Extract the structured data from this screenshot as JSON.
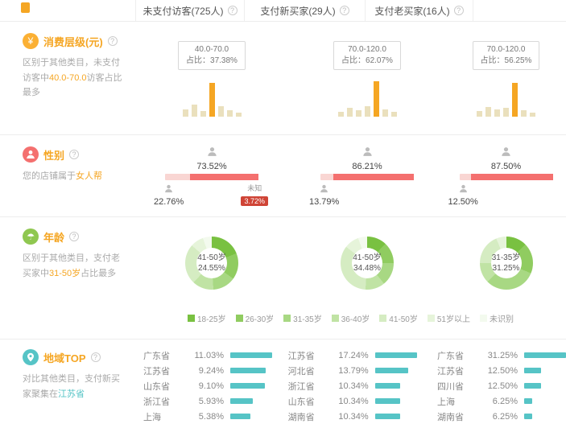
{
  "ui": {
    "help": "?"
  },
  "colors": {
    "orange": "#f5a623",
    "yellowIcon": "#fbb034",
    "tan": "#eae0bd",
    "pink": "#f4706f",
    "pinkLight": "#f9d6d3",
    "redBadge": "#cf4436",
    "teal": "#56c4c6",
    "greenIcon": "#8fc750"
  },
  "header": {
    "columns": [
      "未支付访客(725人)",
      "支付新买家(29人)",
      "支付老买家(16人)"
    ]
  },
  "consume": {
    "icon_glyph": "¥",
    "title": "消费层级(元)",
    "desc": {
      "pre": "区别于其他类目，未支付访客中",
      "highlight": "40.0-70.0",
      "post": "访客占比最多"
    },
    "columns": [
      {
        "range": "40.0-70.0",
        "ratio": "占比：37.38%",
        "bars": [
          9,
          15,
          7,
          42,
          13,
          8,
          5
        ],
        "highlight": 3
      },
      {
        "range": "70.0-120.0",
        "ratio": "占比：62.07%",
        "bars": [
          6,
          11,
          8,
          13,
          44,
          9,
          6
        ],
        "highlight": 4
      },
      {
        "range": "70.0-120.0",
        "ratio": "占比：56.25%",
        "bars": [
          7,
          12,
          9,
          11,
          42,
          8,
          5
        ],
        "highlight": 4
      }
    ]
  },
  "gender": {
    "title": "性别",
    "desc": {
      "pre": "您的店铺属于",
      "highlight": "女人帮",
      "post": ""
    },
    "columns": [
      {
        "female_pct": "73.52%",
        "female_val": 73.52,
        "male_pct": "22.76%",
        "unknown_label": "未知",
        "unknown_pct": "3.72%"
      },
      {
        "female_pct": "86.21%",
        "female_val": 86.21,
        "male_pct": "13.79%"
      },
      {
        "female_pct": "87.50%",
        "female_val": 87.5,
        "male_pct": "12.50%"
      }
    ]
  },
  "age": {
    "title": "年龄",
    "desc": {
      "pre": "区别于其他类目，支付老买家中",
      "highlight": "31-50岁",
      "post": "占比最多"
    },
    "legend": [
      {
        "label": "18-25岁",
        "color": "#79c141"
      },
      {
        "label": "26-30岁",
        "color": "#90cc60"
      },
      {
        "label": "31-35岁",
        "color": "#a8d883"
      },
      {
        "label": "36-40岁",
        "color": "#c0e3a4"
      },
      {
        "label": "41-50岁",
        "color": "#d5ecc2"
      },
      {
        "label": "51岁以上",
        "color": "#e6f4da"
      },
      {
        "label": "未识别",
        "color": "#f3faee"
      }
    ],
    "columns": [
      {
        "label": "41-50岁",
        "value": "24.55%",
        "values": [
          19,
          16,
          14,
          13,
          24.55,
          8,
          5.45
        ]
      },
      {
        "label": "41-50岁",
        "value": "34.48%",
        "values": [
          12,
          13,
          14,
          12,
          34.48,
          9,
          5.52
        ]
      },
      {
        "label": "31-35岁",
        "value": "31.25%",
        "values": [
          12.5,
          18.75,
          31.25,
          12.5,
          18.75,
          6.25,
          0
        ]
      }
    ]
  },
  "region": {
    "title": "地域TOP",
    "desc": {
      "pre": "对比其他类目，支付新买家聚集在",
      "highlight": "江苏省",
      "post": ""
    },
    "columns": [
      {
        "rows": [
          {
            "name": "广东省",
            "pct": "11.03%",
            "val": 11.03
          },
          {
            "name": "江苏省",
            "pct": "9.24%",
            "val": 9.24
          },
          {
            "name": "山东省",
            "pct": "9.10%",
            "val": 9.1
          },
          {
            "name": "浙江省",
            "pct": "5.93%",
            "val": 5.93
          },
          {
            "name": "上海",
            "pct": "5.38%",
            "val": 5.38
          }
        ]
      },
      {
        "rows": [
          {
            "name": "江苏省",
            "pct": "17.24%",
            "val": 17.24
          },
          {
            "name": "河北省",
            "pct": "13.79%",
            "val": 13.79
          },
          {
            "name": "浙江省",
            "pct": "10.34%",
            "val": 10.34
          },
          {
            "name": "山东省",
            "pct": "10.34%",
            "val": 10.34
          },
          {
            "name": "湖南省",
            "pct": "10.34%",
            "val": 10.34
          }
        ]
      },
      {
        "rows": [
          {
            "name": "广东省",
            "pct": "31.25%",
            "val": 31.25
          },
          {
            "name": "江苏省",
            "pct": "12.50%",
            "val": 12.5
          },
          {
            "name": "四川省",
            "pct": "12.50%",
            "val": 12.5
          },
          {
            "name": "上海",
            "pct": "6.25%",
            "val": 6.25
          },
          {
            "name": "湖南省",
            "pct": "6.25%",
            "val": 6.25
          }
        ]
      }
    ]
  }
}
